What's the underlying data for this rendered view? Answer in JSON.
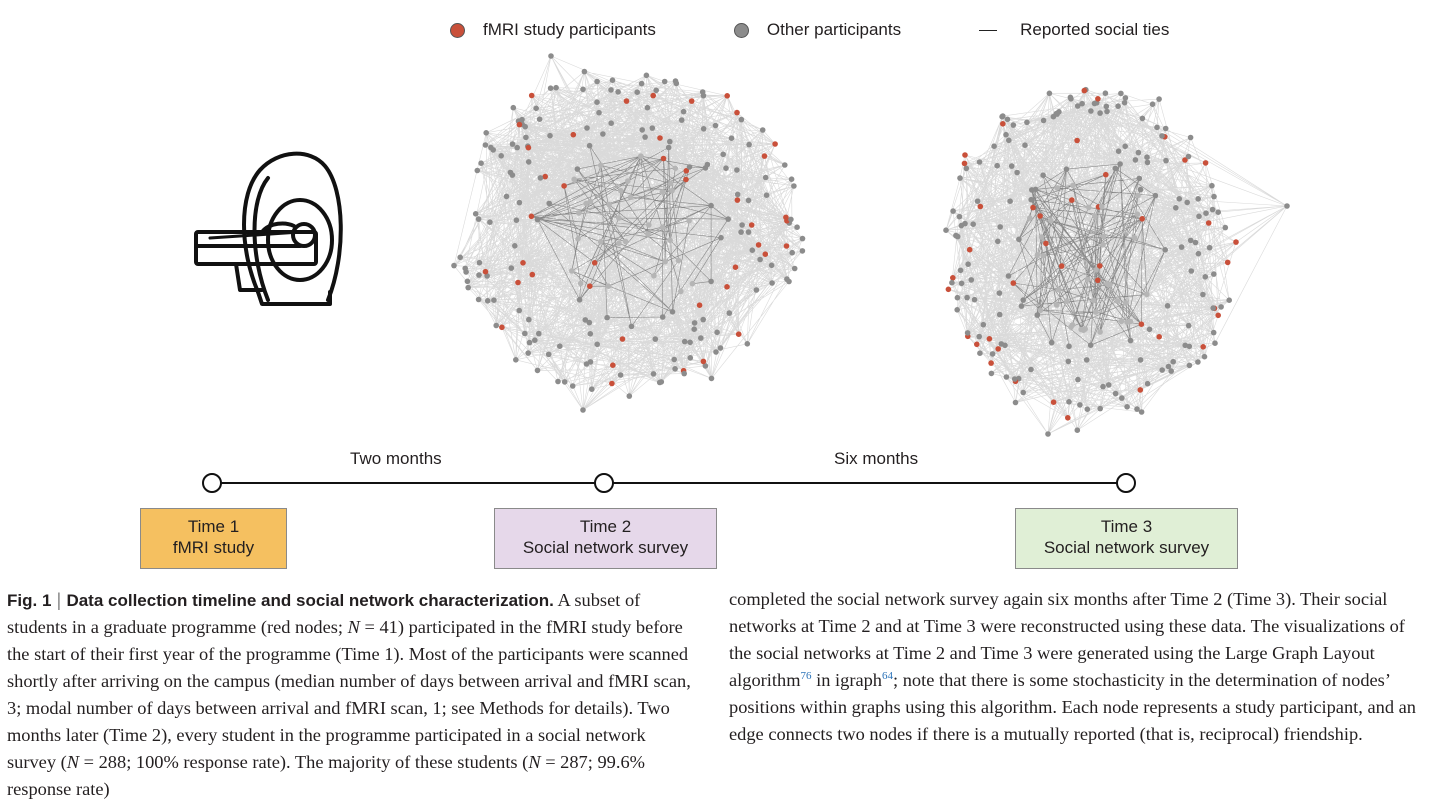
{
  "legend": {
    "fmri": "fMRI study participants",
    "other": "Other participants",
    "ties": "Reported social ties",
    "fmri_color": "#c9503a",
    "other_color": "#8c8c8c"
  },
  "timeline": {
    "interval_1": "Two months",
    "interval_2": "Six months",
    "time1": {
      "title": "Time 1",
      "subtitle": "fMRI study",
      "color": "#f5c060"
    },
    "time2": {
      "title": "Time 2",
      "subtitle": "Social network survey",
      "color": "#e6d8ea"
    },
    "time3": {
      "title": "Time 3",
      "subtitle": "Social network survey",
      "color": "#e0efd6"
    }
  },
  "icons": {
    "scanner": "mri-scanner-icon"
  },
  "caption": {
    "label": "Fig. 1",
    "separator": "|",
    "title": "Data collection timeline and social network characterization.",
    "seg1": " A subset of students in a graduate programme (red nodes; ",
    "n1_var": "N",
    "n1_val": " = 41) participated in the fMRI study before the start of their first year of the programme (Time 1). Most of the participants were scanned shortly after arriving on the campus (median number of days between arrival and fMRI scan, 3; modal number of days between arrival and fMRI scan, 1; see Methods for details). Two months later (Time 2), every student in the programme participated in a social network survey (",
    "n2_var": "N",
    "n2_val": " = 288; 100% response rate). The majority of these students (",
    "n3_var": "N",
    "n3_val": " = 287; 99.6% response rate)",
    "right_seg1": "completed the social network survey again six months after Time 2 (Time 3). Their social networks at Time 2 and at Time 3 were reconstructed using these data. The visualizations of the social networks at Time 2 and Time 3 were generated using the Large Graph Layout algorithm",
    "ref1": "76",
    "right_seg2": " in igraph",
    "ref2": "64",
    "right_seg3": "; note that there is some stochasticity in the determination of nodes’ positions within graphs using this algorithm. Each node represents a study participant, and an edge connects two nodes if there is a mutually reported (that is, reciprocal) friendship."
  }
}
